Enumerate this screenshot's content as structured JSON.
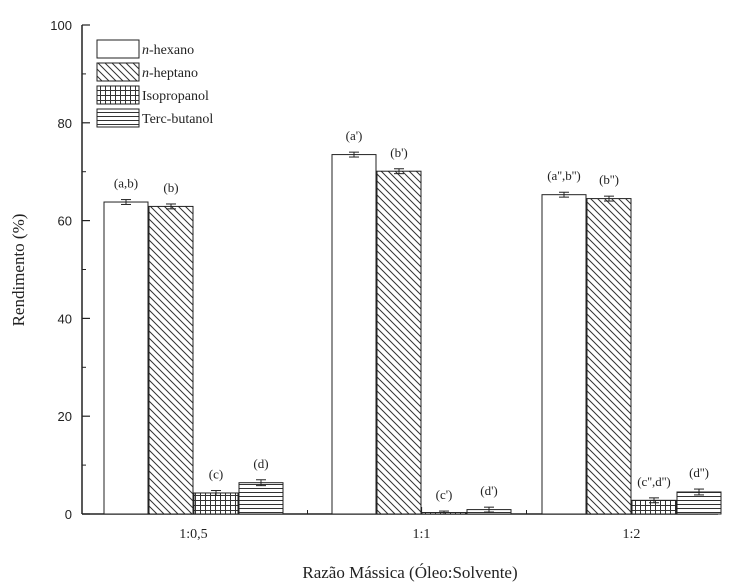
{
  "chart_data": {
    "type": "bar",
    "xlabel": "Razão Mássica (Óleo:Solvente)",
    "ylabel": "Rendimento (%)",
    "ylim": [
      0,
      100
    ],
    "yticks": [
      "0",
      "20",
      "40",
      "60",
      "80",
      "100"
    ],
    "categories": [
      "1:0,5",
      "1:1",
      "1:2"
    ],
    "legend_position": "top-left",
    "series": [
      {
        "name": "n-hexano",
        "name_prefix": "n",
        "name_suffix": "-hexano",
        "pattern": "none",
        "values": [
          63.8,
          73.5,
          65.3
        ],
        "errors": [
          0.5,
          0.5,
          0.5
        ],
        "labels": [
          "(a,b)",
          "(a')",
          "(a'',b'')"
        ]
      },
      {
        "name": "n-heptano",
        "name_prefix": "n",
        "name_suffix": "-heptano",
        "pattern": "diagonal",
        "values": [
          62.9,
          70.1,
          64.5
        ],
        "errors": [
          0.5,
          0.5,
          0.5
        ],
        "labels": [
          "(b)",
          "(b')",
          "(b'')"
        ]
      },
      {
        "name": "Isopropanol",
        "name_prefix": "",
        "name_suffix": "Isopropanol",
        "pattern": "grid",
        "values": [
          4.3,
          0.3,
          2.8
        ],
        "errors": [
          0.5,
          0.3,
          0.5
        ],
        "labels": [
          "(c)",
          "(c')",
          "(c'',d'')"
        ]
      },
      {
        "name": "Terc-butanol",
        "name_prefix": "",
        "name_suffix": "Terc-butanol",
        "pattern": "horizontal",
        "values": [
          6.4,
          0.9,
          4.5
        ],
        "errors": [
          0.6,
          0.5,
          0.6
        ],
        "labels": [
          "(d)",
          "(d')",
          "(d'')"
        ]
      }
    ]
  }
}
